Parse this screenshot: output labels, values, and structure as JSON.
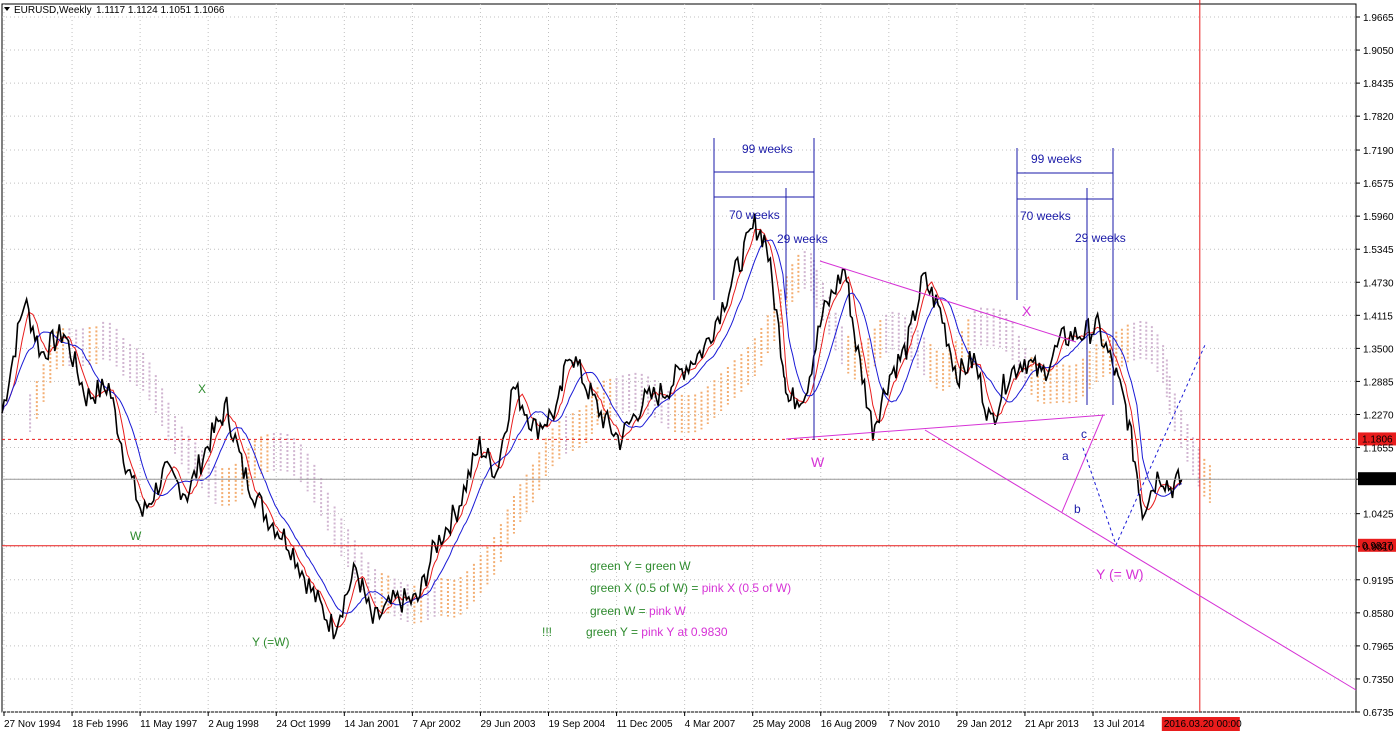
{
  "header": {
    "symbol": "EURUSD,Weekly",
    "ohlc": "1.1117 1.1124 1.1051 1.1066"
  },
  "chart_data": {
    "type": "line",
    "ylim": [
      0.6735,
      1.9665
    ],
    "y_ticks": [
      "1.9665",
      "1.9050",
      "1.8435",
      "1.7820",
      "1.7190",
      "1.6575",
      "1.5960",
      "1.5345",
      "1.4730",
      "1.4115",
      "1.3500",
      "1.2885",
      "1.2270",
      "1.1655",
      "1.1066",
      "1.0425",
      "0.9810",
      "0.9195",
      "0.8580",
      "0.7965",
      "0.7350",
      "0.6735"
    ],
    "x_ticks": [
      "27 Nov 1994",
      "18 Feb 1996",
      "11 May 1997",
      "2 Aug 1998",
      "24 Oct 1999",
      "14 Jan 2001",
      "7 Apr 2002",
      "29 Jun 2003",
      "19 Sep 2004",
      "11 Dec 2005",
      "4 Mar 2007",
      "25 May 2008",
      "16 Aug 2009",
      "7 Nov 2010",
      "29 Jan 2012",
      "21 Apr 2013",
      "13 Jul 2014"
    ],
    "x_highlight": "2016.03.20 00:00",
    "grid": true,
    "price_path": [
      [
        1994.9,
        1.23
      ],
      [
        1995.3,
        1.44
      ],
      [
        1995.6,
        1.34
      ],
      [
        1996.0,
        1.38
      ],
      [
        1996.4,
        1.26
      ],
      [
        1996.8,
        1.28
      ],
      [
        1997.1,
        1.14
      ],
      [
        1997.4,
        1.04
      ],
      [
        1997.8,
        1.12
      ],
      [
        1998.2,
        1.08
      ],
      [
        1998.6,
        1.18
      ],
      [
        1998.9,
        1.24
      ],
      [
        1999.2,
        1.12
      ],
      [
        1999.6,
        1.04
      ],
      [
        2000.0,
        0.99
      ],
      [
        2000.4,
        0.9
      ],
      [
        2000.8,
        0.83
      ],
      [
        2001.2,
        0.94
      ],
      [
        2001.5,
        0.84
      ],
      [
        2001.9,
        0.88
      ],
      [
        2002.3,
        0.88
      ],
      [
        2002.6,
        0.98
      ],
      [
        2003.0,
        1.05
      ],
      [
        2003.4,
        1.17
      ],
      [
        2003.7,
        1.12
      ],
      [
        2004.0,
        1.28
      ],
      [
        2004.4,
        1.2
      ],
      [
        2004.8,
        1.24
      ],
      [
        2005.0,
        1.35
      ],
      [
        2005.3,
        1.28
      ],
      [
        2005.6,
        1.22
      ],
      [
        2005.9,
        1.18
      ],
      [
        2006.3,
        1.25
      ],
      [
        2006.7,
        1.27
      ],
      [
        2007.0,
        1.31
      ],
      [
        2007.4,
        1.35
      ],
      [
        2007.8,
        1.45
      ],
      [
        2008.3,
        1.58
      ],
      [
        2008.5,
        1.55
      ],
      [
        2008.8,
        1.33
      ],
      [
        2008.9,
        1.25
      ],
      [
        2009.2,
        1.27
      ],
      [
        2009.5,
        1.41
      ],
      [
        2009.9,
        1.5
      ],
      [
        2010.1,
        1.36
      ],
      [
        2010.4,
        1.2
      ],
      [
        2010.7,
        1.3
      ],
      [
        2011.0,
        1.35
      ],
      [
        2011.3,
        1.48
      ],
      [
        2011.6,
        1.42
      ],
      [
        2011.9,
        1.3
      ],
      [
        2012.2,
        1.33
      ],
      [
        2012.5,
        1.21
      ],
      [
        2012.8,
        1.3
      ],
      [
        2013.1,
        1.33
      ],
      [
        2013.4,
        1.3
      ],
      [
        2013.8,
        1.37
      ],
      [
        2014.2,
        1.38
      ],
      [
        2014.4,
        1.39
      ],
      [
        2014.7,
        1.31
      ],
      [
        2014.9,
        1.24
      ],
      [
        2015.1,
        1.12
      ],
      [
        2015.2,
        1.05
      ],
      [
        2015.5,
        1.12
      ],
      [
        2015.7,
        1.09
      ],
      [
        2015.9,
        1.1066
      ]
    ],
    "reference_lines": [
      {
        "value": 1.1806,
        "label": "1.1806",
        "color": "#e81c1c"
      },
      {
        "value": 1.1066,
        "label": "1.1066",
        "color": "#000000"
      },
      {
        "value": 0.9827,
        "label": "0.9827",
        "color": "#e81c1c"
      }
    ],
    "cycle_annotations": [
      {
        "label": "99 weeks",
        "start": 2008.2,
        "end": 2010.1
      },
      {
        "label": "70 weeks",
        "start": 2008.2,
        "end": 2009.55
      },
      {
        "label": "29 weeks",
        "start": 2009.55,
        "end": 2010.1
      },
      {
        "label": "99 weeks",
        "start": 2014.3,
        "end": 2016.2
      },
      {
        "label": "70 weeks",
        "start": 2014.3,
        "end": 2015.65
      },
      {
        "label": "29 weeks",
        "start": 2015.65,
        "end": 2016.2
      }
    ],
    "wave_labels": [
      {
        "text": "X",
        "color": "#2e8b2e"
      },
      {
        "text": "W",
        "color": "#2e8b2e"
      },
      {
        "text": "Y (=W)",
        "color": "#2e8b2e"
      },
      {
        "text": "W",
        "color": "#d633d6"
      },
      {
        "text": "X",
        "color": "#d633d6"
      },
      {
        "text": "Y (= W)",
        "color": "#d633d6"
      },
      {
        "text": "a",
        "color": "#1a1aa8"
      },
      {
        "text": "b",
        "color": "#1a1aa8"
      },
      {
        "text": "c",
        "color": "#1a1aa8"
      }
    ],
    "notes": [
      [
        {
          "text": "green Y = green W",
          "color": "#2e8b2e"
        }
      ],
      [
        {
          "text": "green X (0.5 of W) = ",
          "color": "#2e8b2e"
        },
        {
          "text": "pink X (0.5 of W)",
          "color": "#d633d6"
        }
      ],
      [
        {
          "text": "green W =  ",
          "color": "#2e8b2e"
        },
        {
          "text": "pink W",
          "color": "#d633d6"
        }
      ],
      [
        {
          "text": "!!!",
          "color": "#2e8b2e"
        },
        {
          "text": "green Y =  ",
          "color": "#2e8b2e"
        },
        {
          "text": "pink  Y   at 0.9830",
          "color": "#d633d6"
        }
      ]
    ]
  },
  "colors": {
    "price": "#000000",
    "ma_fast": "#e81c1c",
    "ma_slow": "#1a1ad6",
    "cloud_orange": "#f2a05a",
    "cloud_mauve": "#c9a9c9",
    "pink": "#d633d6",
    "green": "#2e8b2e",
    "blue": "#1a1aa8",
    "grid": "#c0c0c0"
  }
}
